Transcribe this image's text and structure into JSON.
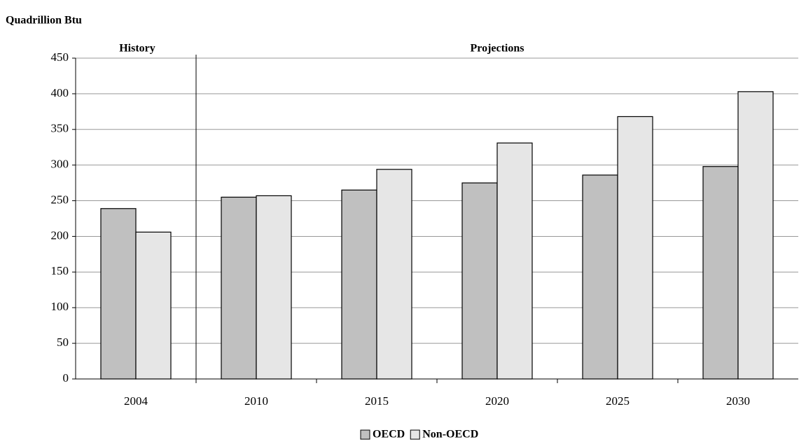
{
  "chart_data": {
    "type": "bar",
    "y_label": "Quadrillion Btu",
    "annotations": [
      "History",
      "Projections"
    ],
    "categories": [
      "2004",
      "2010",
      "2015",
      "2020",
      "2025",
      "2030"
    ],
    "series": [
      {
        "name": "OECD",
        "color": "#c0c0c0",
        "values": [
          239,
          255,
          265,
          275,
          286,
          298
        ]
      },
      {
        "name": "Non-OECD",
        "color": "#e6e6e6",
        "values": [
          206,
          257,
          294,
          331,
          368,
          403
        ]
      }
    ],
    "ylim": [
      0,
      450
    ],
    "yticks": [
      0,
      50,
      100,
      150,
      200,
      250,
      300,
      350,
      400,
      450
    ],
    "grid": true
  }
}
